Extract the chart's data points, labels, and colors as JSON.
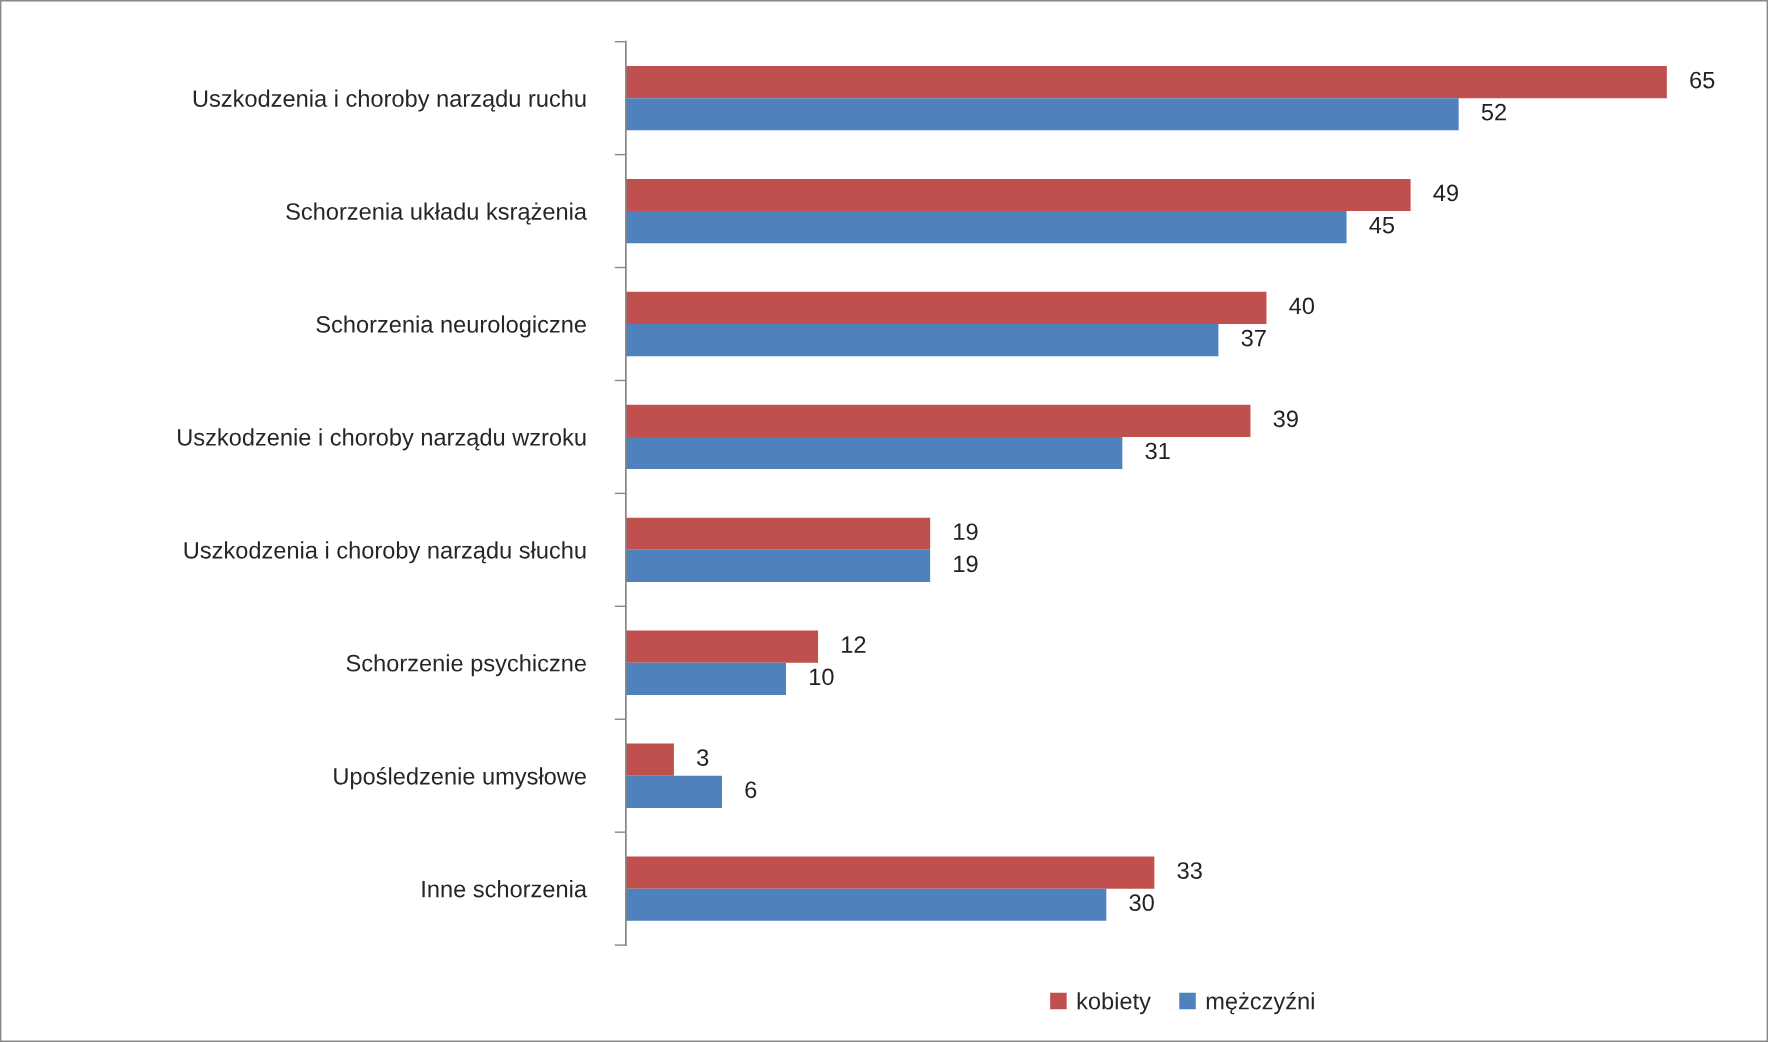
{
  "chart_data": {
    "type": "bar",
    "orientation": "horizontal",
    "categories": [
      "Uszkodzenia i choroby narządu ruchu",
      "Schorzenia układu ksrążenia",
      "Schorzenia neurologiczne",
      "Uszkodzenie i choroby narządu wzroku",
      "Uszkodzenia i choroby narządu słuchu",
      "Schorzenie psychiczne",
      "Upośledzenie umysłowe",
      "Inne schorzenia"
    ],
    "series": [
      {
        "name": "kobiety",
        "color": "#c0504d",
        "values": [
          65,
          49,
          40,
          39,
          19,
          12,
          3,
          33
        ]
      },
      {
        "name": "mężczyźni",
        "color": "#4f81bd",
        "values": [
          52,
          45,
          37,
          31,
          19,
          10,
          6,
          30
        ]
      }
    ],
    "data_labels": true,
    "legend": "bottom",
    "grid": false,
    "tick_labels": "y"
  }
}
